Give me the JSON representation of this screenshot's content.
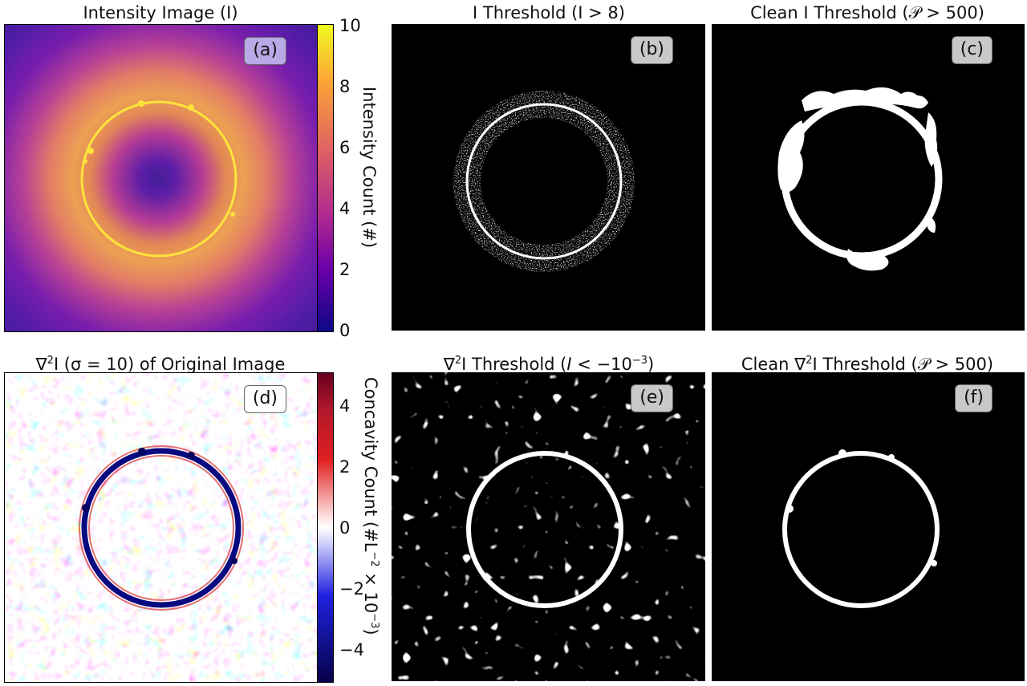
{
  "panels": {
    "a": {
      "title": "Intensity Image (I)",
      "tag": "(a)",
      "tag_bg": "#b9a9e6",
      "colorbar": {
        "label": "Intensity Count (#)",
        "ticks": [
          "10",
          "8",
          "6",
          "4",
          "2",
          "0"
        ],
        "colors": [
          "#f0f921",
          "#fca636",
          "#e16462",
          "#b12a90",
          "#6a00a8",
          "#0d0887"
        ]
      }
    },
    "b": {
      "title": "I Threshold (I > 8)",
      "tag": "(b)",
      "tag_bg": "#c8c8c8"
    },
    "c": {
      "title": "Clean I Threshold (𝒫 > 500)",
      "tag": "(c)",
      "tag_bg": "#c8c8c8"
    },
    "d": {
      "title_main": "∇",
      "title_sup": "2",
      "title_rest": "I (σ = 10) of Original Image",
      "tag": "(d)",
      "tag_bg": "#ffffff",
      "colorbar": {
        "label_main": "Concavity Count (#L",
        "label_sup1": "−2",
        "label_mid": " × 10",
        "label_sup2": "−3",
        "label_end": ")",
        "ticks": [
          "4",
          "2",
          "0",
          "−2",
          "−4"
        ],
        "colors": [
          "#67001f",
          "#d62020",
          "#ffffff",
          "#2020d6",
          "#08004a"
        ]
      }
    },
    "e": {
      "title_main": "∇",
      "title_sup": "2",
      "title_rest_1": "I Threshold (",
      "title_italic": "I",
      "title_rest_2": " < −10",
      "title_sup2": "−3",
      "title_rest_3": ")",
      "tag": "(e)",
      "tag_bg": "#c8c8c8"
    },
    "f": {
      "title_1": "Clean ∇",
      "title_sup": "2",
      "title_2": "I Threshold (𝒫 > 500)",
      "tag": "(f)",
      "tag_bg": "#c8c8c8"
    }
  },
  "colors": {
    "background_black": "#000000",
    "ring_white": "#ffffff"
  }
}
